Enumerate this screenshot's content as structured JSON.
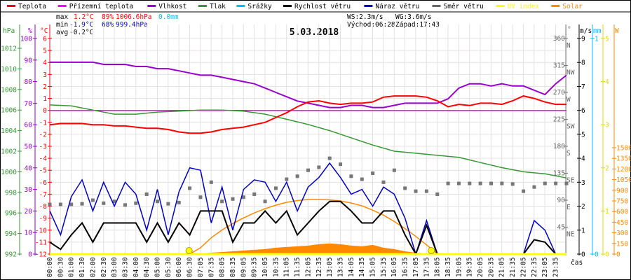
{
  "legend": [
    {
      "label": "Teplota",
      "color": "#ff0000"
    },
    {
      "label": "Přízemní teplota",
      "color": "#ff00ff"
    },
    {
      "label": "Vlhkost",
      "color": "#9900cc"
    },
    {
      "label": "Tlak",
      "color": "#339933"
    },
    {
      "label": "Srážky",
      "color": "#00bbff"
    },
    {
      "label": "Rychlost větru",
      "color": "#000000"
    },
    {
      "label": "Náraz větru",
      "color": "#0000cc"
    },
    {
      "label": "Směr větru",
      "color": "#666666"
    },
    {
      "label": "UV index",
      "color": "#ffff00"
    },
    {
      "label": "Solar",
      "color": "#ff8800"
    }
  ],
  "stats": {
    "max_label": "max",
    "max_temp": "1.2°C",
    "max_hum": "89%",
    "max_press": "1006.6hPa",
    "rain": "0.0mm",
    "min_label": "min",
    "min_temp": "-1.9°C",
    "min_hum": "68%",
    "min_press": "999.4hPa",
    "avg_label": "avg",
    "avg_temp": "-0.2°C",
    "ws": "WS:2.3m/s",
    "wg": "WG:3.6m/s",
    "sunrise": "Východ:06:28",
    "sunset": "Západ:17:43"
  },
  "chart_data": {
    "type": "line",
    "title": "5.03.2018",
    "xlabel": "čas",
    "x_tick_labels": [
      "00:00",
      "00:30",
      "01:00",
      "01:30",
      "02:00",
      "02:30",
      "03:00",
      "03:30",
      "04:00",
      "04:30",
      "05:00",
      "05:30",
      "06:00",
      "06:30",
      "07:05",
      "07:35",
      "08:05",
      "08:35",
      "09:05",
      "09:35",
      "10:05",
      "10:35",
      "11:05",
      "11:35",
      "12:05",
      "12:35",
      "13:05",
      "13:35",
      "14:05",
      "14:35",
      "15:05",
      "15:35",
      "16:05",
      "16:35",
      "17:05",
      "17:35",
      "18:05",
      "18:35",
      "19:05",
      "19:35",
      "20:05",
      "20:35",
      "21:05",
      "21:35",
      "22:05",
      "22:35",
      "23:05",
      "23:35"
    ],
    "axes": {
      "hPa": {
        "unit": "hPa",
        "range": [
          992,
          1012
        ],
        "ticks": [
          992,
          994,
          996,
          998,
          1000,
          1002,
          1004,
          1006,
          1008,
          1010,
          1012
        ]
      },
      "pct": {
        "unit": "%",
        "range": [
          0,
          100
        ],
        "ticks": [
          0,
          10,
          20,
          30,
          40,
          50,
          60,
          70,
          80,
          90,
          100
        ]
      },
      "temp": {
        "unit": "°C",
        "range": [
          -12,
          6
        ],
        "ticks": [
          -12,
          -11,
          -10,
          -9,
          -8,
          -7,
          -6,
          -5,
          -4,
          -3,
          -2,
          -1,
          0,
          1,
          2,
          3,
          4,
          5,
          6
        ]
      },
      "dir": {
        "unit": "°",
        "range": [
          0,
          360
        ],
        "ticks": [
          45,
          90,
          135,
          180,
          225,
          270,
          315,
          360
        ],
        "compass": [
          "NE",
          "E",
          "SE",
          "S",
          "SW",
          "W",
          "NW",
          "N"
        ]
      },
      "wind": {
        "unit": "m/s",
        "range": [
          0,
          9
        ],
        "ticks": [
          0,
          1,
          2,
          3,
          4,
          5,
          6,
          7,
          8,
          9
        ]
      },
      "rain": {
        "unit": "mm",
        "range": [
          0,
          1
        ],
        "ticks": [
          0,
          1
        ]
      },
      "uv": {
        "unit": "",
        "range": [
          0,
          5
        ],
        "ticks": [
          0,
          1,
          2,
          3,
          4,
          5
        ]
      },
      "solar": {
        "unit": "W",
        "range": [
          0,
          1500
        ],
        "ticks": [
          0,
          150,
          300,
          450,
          600,
          750,
          900,
          1050,
          1200,
          1350,
          1500
        ]
      }
    },
    "x_range_hours": [
      0,
      24
    ],
    "sun_markers_hours": [
      6.47,
      17.72
    ],
    "series": [
      {
        "name": "Teplota",
        "axis": "temp",
        "step_h": 0.5,
        "values": [
          -1.2,
          -1.1,
          -1.1,
          -1.1,
          -1.2,
          -1.2,
          -1.3,
          -1.3,
          -1.4,
          -1.5,
          -1.5,
          -1.6,
          -1.8,
          -1.9,
          -1.9,
          -1.8,
          -1.6,
          -1.5,
          -1.4,
          -1.2,
          -1.0,
          -0.6,
          -0.2,
          0.3,
          0.7,
          0.8,
          0.6,
          0.5,
          0.6,
          0.6,
          0.7,
          1.1,
          1.2,
          1.2,
          1.2,
          1.1,
          0.8,
          0.3,
          0.5,
          0.4,
          0.6,
          0.6,
          0.5,
          0.8,
          1.2,
          1.0,
          0.7,
          0.5,
          0.5
        ]
      },
      {
        "name": "Přízemní teplota",
        "axis": "temp",
        "step_h": 24,
        "values": [
          0,
          0
        ]
      },
      {
        "name": "Vlhkost",
        "axis": "pct",
        "step_h": 0.5,
        "values": [
          89,
          89,
          89,
          89,
          89,
          88,
          88,
          88,
          87,
          87,
          86,
          86,
          85,
          84,
          83,
          83,
          82,
          81,
          80,
          79,
          77,
          75,
          73,
          71,
          70,
          69,
          68,
          68,
          69,
          69,
          68,
          68,
          69,
          70,
          70,
          70,
          70,
          72,
          77,
          79,
          79,
          78,
          79,
          78,
          78,
          76,
          74,
          79,
          83
        ]
      },
      {
        "name": "Tlak",
        "axis": "hPa",
        "step_h": 1,
        "values": [
          1006.5,
          1006.4,
          1006.0,
          1005.6,
          1005.6,
          1005.8,
          1005.9,
          1006.0,
          1006.0,
          1005.9,
          1005.6,
          1005.1,
          1004.6,
          1004.0,
          1003.3,
          1002.6,
          1002.0,
          1001.8,
          1001.6,
          1001.4,
          1000.9,
          1000.4,
          1000.0,
          999.8,
          999.4
        ]
      },
      {
        "name": "Rychlost větru",
        "axis": "wind",
        "step_h": 0.5,
        "values": [
          0.5,
          0.2,
          0.8,
          1.3,
          0.5,
          1.3,
          1.3,
          1.3,
          1.3,
          0.5,
          1.3,
          0.5,
          1.3,
          0.8,
          1.8,
          1.8,
          1.8,
          0.5,
          1.3,
          1.3,
          1.8,
          1.3,
          1.8,
          0.8,
          1.3,
          1.8,
          2.2,
          2.2,
          1.8,
          1.3,
          1.3,
          1.8,
          1.8,
          0.8,
          0,
          1.2,
          0,
          0,
          0,
          0,
          0,
          0,
          0,
          0,
          0,
          0.6,
          0.5,
          0,
          0
        ]
      },
      {
        "name": "Náraz větru",
        "axis": "wind",
        "step_h": 0.5,
        "values": [
          1.8,
          0.8,
          2.4,
          3.1,
          1.8,
          3.0,
          2.0,
          3.0,
          2.5,
          1.0,
          2.7,
          0.8,
          2.6,
          3.6,
          3.5,
          1.3,
          2.8,
          1.0,
          2.7,
          3.1,
          3.0,
          2.2,
          3.0,
          1.8,
          2.8,
          3.2,
          3.8,
          3.2,
          2.5,
          2.7,
          2.0,
          2.8,
          2.5,
          1.5,
          0,
          1.4,
          0,
          0,
          0,
          0,
          0,
          0,
          0,
          0,
          0,
          1.4,
          1.0,
          0,
          0
        ]
      },
      {
        "name": "Směr větru",
        "axis": "dir",
        "step_h": 0.5,
        "values": [
          83,
          83,
          83,
          84,
          90,
          85,
          88,
          82,
          85,
          100,
          88,
          84,
          86,
          110,
          95,
          120,
          88,
          92,
          95,
          100,
          88,
          110,
          125,
          130,
          140,
          145,
          160,
          150,
          130,
          125,
          135,
          120,
          140,
          110,
          105,
          105,
          100,
          118,
          118,
          118,
          118,
          118,
          118,
          117,
          105,
          112,
          118,
          118,
          118
        ]
      },
      {
        "name": "UV index",
        "axis": "uv",
        "step_h": 24,
        "values": [
          0,
          0
        ]
      },
      {
        "name": "Solar max",
        "axis": "solar",
        "step_h": 0.5,
        "start_h": 6.5,
        "values": [
          0,
          90,
          230,
          340,
          430,
          510,
          580,
          640,
          690,
          730,
          755,
          770,
          770,
          765,
          750,
          720,
          680,
          620,
          550,
          460,
          360,
          250,
          130,
          0
        ]
      },
      {
        "name": "Solar",
        "axis": "solar",
        "step_h": 0.5,
        "start_h": 6.5,
        "fill": true,
        "values": [
          0,
          10,
          20,
          30,
          40,
          50,
          60,
          70,
          90,
          100,
          110,
          120,
          140,
          150,
          140,
          120,
          110,
          130,
          90,
          70,
          40,
          20,
          10,
          0
        ]
      }
    ]
  }
}
